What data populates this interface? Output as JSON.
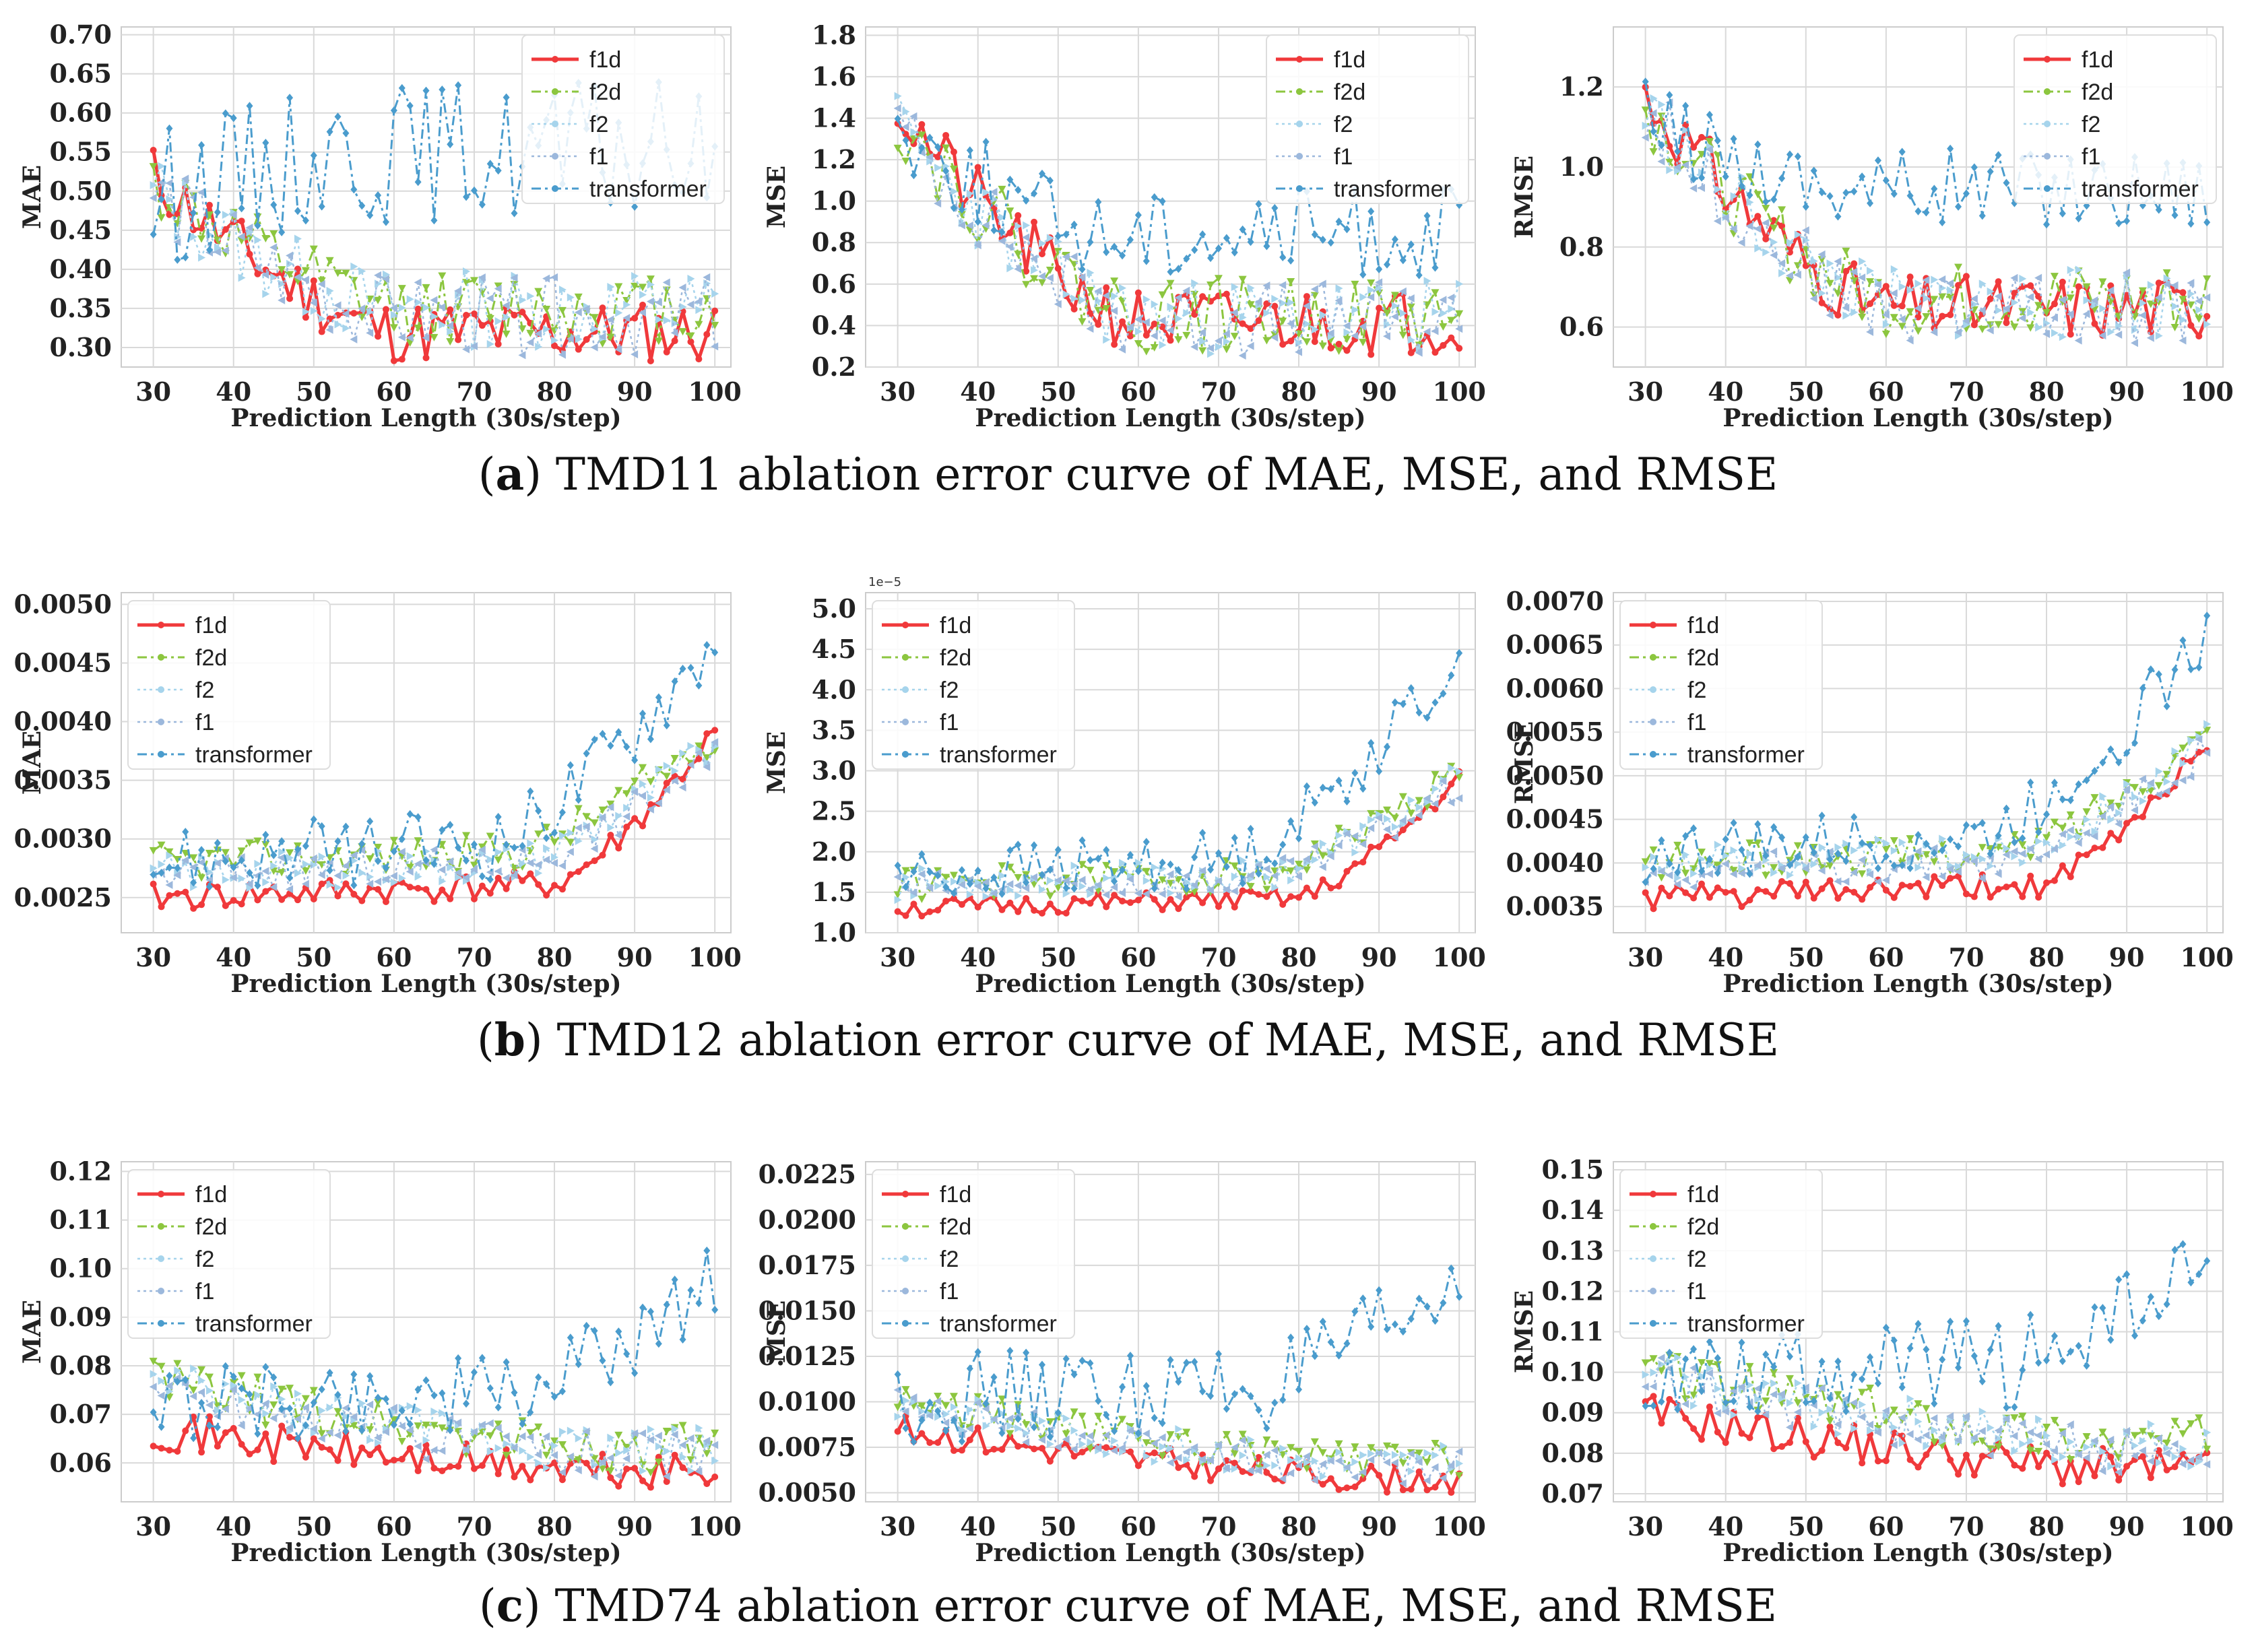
{
  "legend_labels": [
    "f1d",
    "f2d",
    "f2",
    "f1",
    "transformer"
  ],
  "colors": {
    "f1d": "#f0393b",
    "f2d": "#8cc63f",
    "f2": "#a6d4ec",
    "f1": "#9cb8dc",
    "transformer": "#4a9ccd",
    "grid": "#d9d9d9"
  },
  "captions": [
    {
      "label": "a",
      "open": "(",
      "close": ")",
      "text": " TMD11 ablation error curve of MAE, MSE, and RMSE"
    },
    {
      "label": "b",
      "open": "(",
      "close": ")",
      "text": " TMD12 ablation error curve of MAE, MSE, and RMSE"
    },
    {
      "label": "c",
      "open": "(",
      "close": ")",
      "text": " TMD74 ablation error curve of MAE, MSE, and RMSE"
    }
  ],
  "chart_data": [
    {
      "id": "a-mae",
      "type": "line",
      "ylabel": "MAE",
      "xlabel": "Prediction Length (30s/step)",
      "xlim": [
        26,
        102
      ],
      "ylim": [
        0.275,
        0.71
      ],
      "legend_pos": "top-right",
      "xticks": [
        30,
        40,
        50,
        60,
        70,
        80,
        90,
        100
      ],
      "yticks": [
        0.3,
        0.35,
        0.4,
        0.45,
        0.5,
        0.55,
        0.6,
        0.65,
        0.7
      ],
      "ytick_labels": [
        "0.30",
        "0.35",
        "0.40",
        "0.45",
        "0.50",
        "0.55",
        "0.60",
        "0.65",
        "0.70"
      ],
      "x_start": 30,
      "x_end": 100,
      "series": [
        {
          "name": "f1d",
          "start": 0.52,
          "end": 0.32,
          "knee": 60,
          "noise": 0.04,
          "seed": 11
        },
        {
          "name": "f2d",
          "start": 0.51,
          "end": 0.35,
          "knee": 60,
          "noise": 0.045,
          "seed": 12
        },
        {
          "name": "f2",
          "start": 0.5,
          "end": 0.35,
          "knee": 60,
          "noise": 0.05,
          "seed": 13
        },
        {
          "name": "f1",
          "start": 0.5,
          "end": 0.34,
          "knee": 60,
          "noise": 0.05,
          "seed": 14
        },
        {
          "name": "transformer",
          "start": 0.49,
          "end": 0.55,
          "knee": 55,
          "noise": 0.09,
          "seed": 15
        }
      ]
    },
    {
      "id": "a-mse",
      "type": "line",
      "ylabel": "MSE",
      "xlabel": "Prediction Length (30s/step)",
      "xlim": [
        26,
        102
      ],
      "ylim": [
        0.2,
        1.84
      ],
      "legend_pos": "top-right",
      "xticks": [
        30,
        40,
        50,
        60,
        70,
        80,
        90,
        100
      ],
      "yticks": [
        0.2,
        0.4,
        0.6,
        0.8,
        1.0,
        1.2,
        1.4,
        1.6,
        1.8
      ],
      "ytick_labels": [
        "0.2",
        "0.4",
        "0.6",
        "0.8",
        "1.0",
        "1.2",
        "1.4",
        "1.6",
        "1.8"
      ],
      "x_start": 30,
      "x_end": 100,
      "series": [
        {
          "name": "f1d",
          "start": 1.45,
          "end": 0.42,
          "knee": 60,
          "noise": 0.16,
          "seed": 21
        },
        {
          "name": "f2d",
          "start": 1.4,
          "end": 0.45,
          "knee": 60,
          "noise": 0.18,
          "seed": 22
        },
        {
          "name": "f2",
          "start": 1.35,
          "end": 0.44,
          "knee": 60,
          "noise": 0.18,
          "seed": 23
        },
        {
          "name": "f1",
          "start": 1.35,
          "end": 0.43,
          "knee": 60,
          "noise": 0.18,
          "seed": 24
        },
        {
          "name": "transformer",
          "start": 1.35,
          "end": 0.85,
          "knee": 55,
          "noise": 0.22,
          "seed": 25
        }
      ]
    },
    {
      "id": "a-rmse",
      "type": "line",
      "ylabel": "RMSE",
      "xlabel": "Prediction Length (30s/step)",
      "xlim": [
        26,
        102
      ],
      "ylim": [
        0.5,
        1.35
      ],
      "legend_pos": "top-right",
      "xticks": [
        30,
        40,
        50,
        60,
        70,
        80,
        90,
        100
      ],
      "yticks": [
        0.6,
        0.8,
        1.0,
        1.2
      ],
      "ytick_labels": [
        "0.6",
        "0.8",
        "1.0",
        "1.2"
      ],
      "x_start": 30,
      "x_end": 100,
      "series": [
        {
          "name": "f1d",
          "start": 1.18,
          "end": 0.65,
          "knee": 60,
          "noise": 0.08,
          "seed": 31
        },
        {
          "name": "f2d",
          "start": 1.15,
          "end": 0.67,
          "knee": 60,
          "noise": 0.09,
          "seed": 32
        },
        {
          "name": "f2",
          "start": 1.14,
          "end": 0.66,
          "knee": 60,
          "noise": 0.09,
          "seed": 33
        },
        {
          "name": "f1",
          "start": 1.14,
          "end": 0.65,
          "knee": 60,
          "noise": 0.09,
          "seed": 34
        },
        {
          "name": "transformer",
          "start": 1.12,
          "end": 0.95,
          "knee": 55,
          "noise": 0.1,
          "seed": 35
        }
      ]
    },
    {
      "id": "b-mae",
      "type": "line",
      "ylabel": "MAE",
      "xlabel": "Prediction Length (30s/step)",
      "xlim": [
        26,
        102
      ],
      "ylim": [
        0.0022,
        0.0051
      ],
      "legend_pos": "top-left",
      "xticks": [
        30,
        40,
        50,
        60,
        70,
        80,
        90,
        100
      ],
      "yticks": [
        0.0025,
        0.003,
        0.0035,
        0.004,
        0.0045,
        0.005
      ],
      "ytick_labels": [
        "0.0025",
        "0.0030",
        "0.0035",
        "0.0040",
        "0.0045",
        "0.0050"
      ],
      "x_start": 30,
      "x_end": 100,
      "series": [
        {
          "name": "f1d",
          "start": 0.0025,
          "end": 0.0039,
          "knee": 80,
          "noise": 0.00012,
          "seed": 41,
          "rising": true
        },
        {
          "name": "f2d",
          "start": 0.0028,
          "end": 0.0039,
          "knee": 75,
          "noise": 0.00016,
          "seed": 42,
          "rising": true
        },
        {
          "name": "f2",
          "start": 0.0027,
          "end": 0.0038,
          "knee": 75,
          "noise": 0.00016,
          "seed": 43,
          "rising": true
        },
        {
          "name": "f1",
          "start": 0.0027,
          "end": 0.0037,
          "knee": 75,
          "noise": 0.00016,
          "seed": 44,
          "rising": true
        },
        {
          "name": "transformer",
          "start": 0.0028,
          "end": 0.0047,
          "knee": 72,
          "noise": 0.0003,
          "seed": 45,
          "rising": true
        }
      ]
    },
    {
      "id": "b-mse",
      "type": "line",
      "ylabel": "MSE",
      "xlabel": "Prediction Length (30s/step)",
      "xlim": [
        26,
        102
      ],
      "ylim": [
        1.0,
        5.2
      ],
      "legend_pos": "top-left",
      "multiplier": "1e−5",
      "xticks": [
        30,
        40,
        50,
        60,
        70,
        80,
        90,
        100
      ],
      "yticks": [
        1.0,
        1.5,
        2.0,
        2.5,
        3.0,
        3.5,
        4.0,
        4.5,
        5.0
      ],
      "ytick_labels": [
        "1.0",
        "1.5",
        "2.0",
        "2.5",
        "3.0",
        "3.5",
        "4.0",
        "4.5",
        "5.0"
      ],
      "x_start": 30,
      "x_end": 100,
      "series": [
        {
          "name": "f1d",
          "start": 1.3,
          "end": 2.9,
          "knee": 80,
          "noise": 0.12,
          "seed": 51,
          "rising": true
        },
        {
          "name": "f2d",
          "start": 1.6,
          "end": 3.0,
          "knee": 75,
          "noise": 0.2,
          "seed": 52,
          "rising": true
        },
        {
          "name": "f2",
          "start": 1.6,
          "end": 2.9,
          "knee": 75,
          "noise": 0.2,
          "seed": 53,
          "rising": true
        },
        {
          "name": "f1",
          "start": 1.55,
          "end": 2.8,
          "knee": 75,
          "noise": 0.2,
          "seed": 54,
          "rising": true
        },
        {
          "name": "transformer",
          "start": 1.7,
          "end": 4.4,
          "knee": 72,
          "noise": 0.35,
          "seed": 55,
          "rising": true
        }
      ]
    },
    {
      "id": "b-rmse",
      "type": "line",
      "ylabel": "RMSE",
      "xlabel": "Prediction Length (30s/step)",
      "xlim": [
        26,
        102
      ],
      "ylim": [
        0.0032,
        0.0071
      ],
      "legend_pos": "top-left",
      "xticks": [
        30,
        40,
        50,
        60,
        70,
        80,
        90,
        100
      ],
      "yticks": [
        0.0035,
        0.004,
        0.0045,
        0.005,
        0.0055,
        0.006,
        0.0065,
        0.007
      ],
      "ytick_labels": [
        "0.0035",
        "0.0040",
        "0.0045",
        "0.0050",
        "0.0055",
        "0.0060",
        "0.0065",
        "0.0070"
      ],
      "x_start": 30,
      "x_end": 100,
      "series": [
        {
          "name": "f1d",
          "start": 0.0036,
          "end": 0.0054,
          "knee": 80,
          "noise": 0.00015,
          "seed": 61,
          "rising": true
        },
        {
          "name": "f2d",
          "start": 0.004,
          "end": 0.0055,
          "knee": 75,
          "noise": 0.0002,
          "seed": 62,
          "rising": true
        },
        {
          "name": "f2",
          "start": 0.004,
          "end": 0.0054,
          "knee": 75,
          "noise": 0.0002,
          "seed": 63,
          "rising": true
        },
        {
          "name": "f1",
          "start": 0.0039,
          "end": 0.0053,
          "knee": 75,
          "noise": 0.0002,
          "seed": 64,
          "rising": true
        },
        {
          "name": "transformer",
          "start": 0.0041,
          "end": 0.0066,
          "knee": 72,
          "noise": 0.00035,
          "seed": 65,
          "rising": true
        }
      ]
    },
    {
      "id": "c-mae",
      "type": "line",
      "ylabel": "MAE",
      "xlabel": "Prediction Length (30s/step)",
      "xlim": [
        26,
        102
      ],
      "ylim": [
        0.052,
        0.122
      ],
      "legend_pos": "top-left",
      "xticks": [
        30,
        40,
        50,
        60,
        70,
        80,
        90,
        100
      ],
      "yticks": [
        0.06,
        0.07,
        0.08,
        0.09,
        0.1,
        0.11,
        0.12
      ],
      "ytick_labels": [
        "0.06",
        "0.07",
        "0.08",
        "0.09",
        "0.10",
        "0.11",
        "0.12"
      ],
      "x_start": 30,
      "x_end": 100,
      "series": [
        {
          "name": "f1d",
          "start": 0.067,
          "end": 0.058,
          "knee": 90,
          "noise": 0.004,
          "seed": 71
        },
        {
          "name": "f2d",
          "start": 0.077,
          "end": 0.063,
          "knee": 88,
          "noise": 0.005,
          "seed": 72
        },
        {
          "name": "f2",
          "start": 0.076,
          "end": 0.063,
          "knee": 88,
          "noise": 0.005,
          "seed": 73
        },
        {
          "name": "f1",
          "start": 0.075,
          "end": 0.062,
          "knee": 88,
          "noise": 0.005,
          "seed": 74
        },
        {
          "name": "transformer",
          "start": 0.072,
          "end": 0.098,
          "knee": 75,
          "noise": 0.008,
          "seed": 75,
          "rising": true
        }
      ]
    },
    {
      "id": "c-mse",
      "type": "line",
      "ylabel": "MSE",
      "xlabel": "Prediction Length (30s/step)",
      "xlim": [
        26,
        102
      ],
      "ylim": [
        0.0045,
        0.0232
      ],
      "legend_pos": "top-left",
      "xticks": [
        30,
        40,
        50,
        60,
        70,
        80,
        90,
        100
      ],
      "yticks": [
        0.005,
        0.0075,
        0.01,
        0.0125,
        0.015,
        0.0175,
        0.02,
        0.0225
      ],
      "ytick_labels": [
        "0.0050",
        "0.0075",
        "0.0100",
        "0.0125",
        "0.0150",
        "0.0175",
        "0.0200",
        "0.0225"
      ],
      "x_start": 30,
      "x_end": 100,
      "series": [
        {
          "name": "f1d",
          "start": 0.0085,
          "end": 0.0058,
          "knee": 90,
          "noise": 0.0008,
          "seed": 81
        },
        {
          "name": "f2d",
          "start": 0.0102,
          "end": 0.0068,
          "knee": 88,
          "noise": 0.001,
          "seed": 82
        },
        {
          "name": "f2",
          "start": 0.01,
          "end": 0.0066,
          "knee": 88,
          "noise": 0.001,
          "seed": 83
        },
        {
          "name": "f1",
          "start": 0.0098,
          "end": 0.0064,
          "knee": 88,
          "noise": 0.001,
          "seed": 84
        },
        {
          "name": "transformer",
          "start": 0.0102,
          "end": 0.0165,
          "knee": 75,
          "noise": 0.0025,
          "seed": 85,
          "rising": true
        }
      ]
    },
    {
      "id": "c-rmse",
      "type": "line",
      "ylabel": "RMSE",
      "xlabel": "Prediction Length (30s/step)",
      "xlim": [
        26,
        102
      ],
      "ylim": [
        0.068,
        0.152
      ],
      "legend_pos": "top-left",
      "xticks": [
        30,
        40,
        50,
        60,
        70,
        80,
        90,
        100
      ],
      "yticks": [
        0.07,
        0.08,
        0.09,
        0.1,
        0.11,
        0.12,
        0.13,
        0.14,
        0.15
      ],
      "ytick_labels": [
        "0.07",
        "0.08",
        "0.09",
        "0.10",
        "0.11",
        "0.12",
        "0.13",
        "0.14",
        "0.15"
      ],
      "x_start": 30,
      "x_end": 100,
      "series": [
        {
          "name": "f1d",
          "start": 0.09,
          "end": 0.076,
          "knee": 90,
          "noise": 0.005,
          "seed": 91
        },
        {
          "name": "f2d",
          "start": 0.101,
          "end": 0.083,
          "knee": 88,
          "noise": 0.006,
          "seed": 92
        },
        {
          "name": "f2",
          "start": 0.1,
          "end": 0.082,
          "knee": 88,
          "noise": 0.006,
          "seed": 93
        },
        {
          "name": "f1",
          "start": 0.099,
          "end": 0.081,
          "knee": 88,
          "noise": 0.006,
          "seed": 94
        },
        {
          "name": "transformer",
          "start": 0.1,
          "end": 0.125,
          "knee": 75,
          "noise": 0.011,
          "seed": 95,
          "rising": true
        }
      ]
    }
  ]
}
